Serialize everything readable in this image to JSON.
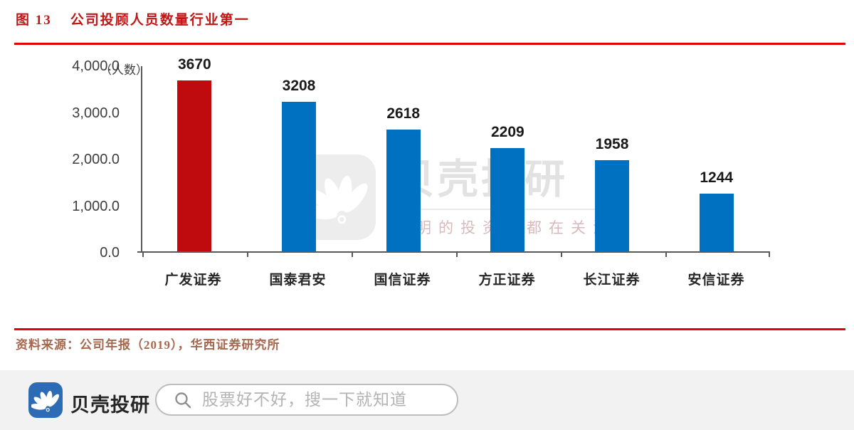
{
  "figure": {
    "label": "图 13",
    "title": "公司投顾人员数量行业第一"
  },
  "chart_data": {
    "type": "bar",
    "categories": [
      "广发证券",
      "国泰君安",
      "国信证券",
      "方正证券",
      "长江证券",
      "安信证券"
    ],
    "values": [
      3670,
      3208,
      2618,
      2209,
      1958,
      1244
    ],
    "bar_colors": [
      "#c00b0e",
      "#0070c0",
      "#0070c0",
      "#0070c0",
      "#0070c0",
      "#0070c0"
    ],
    "highlight_color": "#c00b0e",
    "series_color": "#0070c0",
    "ylabel": "（人数）",
    "y_ticks": [
      "4,000.0",
      "3,000.0",
      "2,000.0",
      "1,000.0",
      "0.0"
    ],
    "ylim": [
      0,
      4000
    ],
    "grid": false,
    "legend": "none",
    "data_labels": true
  },
  "source_note": "资料来源：公司年报（2019），华西证券研究所",
  "watermark": {
    "logo_icon": "shell-fan-icon",
    "brand": "贝壳投研",
    "tagline": "聪明的投资者都在关注"
  },
  "footer_bar": {
    "logo_icon": "shell-fan-icon",
    "brand": "贝壳投研",
    "search_placeholder": "股票好不好，搜一下就知道"
  },
  "colors": {
    "accent_red_line": "#e20404",
    "title_red": "#c01616",
    "source_brown": "#a5674e",
    "app_logo_blue": "#2d6cb5",
    "axis_gray": "#595959"
  }
}
